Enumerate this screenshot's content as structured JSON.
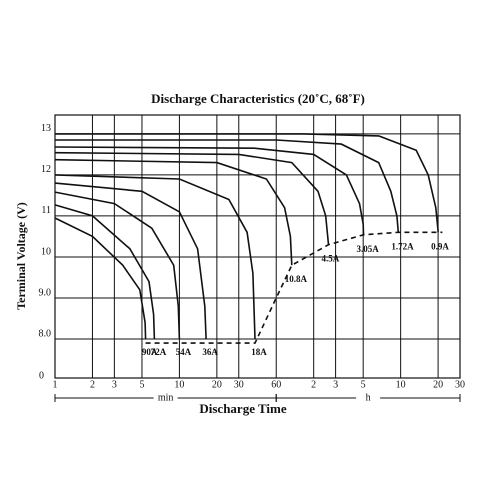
{
  "chart_data": {
    "type": "line",
    "title": "Discharge Characteristics (20˚C, 68˚F)",
    "x_label": "Discharge Time",
    "y_label": "Terminal Voltage (V)",
    "x_unit_labels": [
      "min",
      "h"
    ],
    "y_origin_label": "0",
    "log_x": true,
    "grid": true,
    "color": "#111111",
    "xlim": [
      1,
      1800
    ],
    "ylim": [
      7.05,
      13.46
    ],
    "xticks": [
      1,
      2,
      3,
      5,
      10,
      20,
      30,
      60,
      {
        "value": 120,
        "label": "2"
      },
      {
        "value": 180,
        "label": "3"
      },
      {
        "value": 300,
        "label": "5"
      },
      {
        "value": 600,
        "label": "10"
      },
      {
        "value": 1200,
        "label": "20"
      },
      {
        "value": 1800,
        "label": "30"
      }
    ],
    "yticks": [
      13,
      12,
      11,
      10,
      {
        "value": 9,
        "label": "9.0"
      },
      {
        "value": 8,
        "label": "8.0"
      }
    ],
    "series": [
      {
        "name": "0.9A",
        "x": [
          1,
          100,
          400,
          800,
          1000,
          1150,
          1202
        ],
        "values": [
          13.0,
          13.0,
          12.95,
          12.6,
          12.0,
          11.2,
          10.6
        ]
      },
      {
        "name": "1.72A",
        "x": [
          1,
          60,
          200,
          400,
          500,
          560,
          575
        ],
        "values": [
          12.85,
          12.85,
          12.75,
          12.3,
          11.6,
          11.0,
          10.6
        ]
      },
      {
        "name": "3.05A",
        "x": [
          1,
          40,
          120,
          220,
          280,
          300,
          302
        ],
        "values": [
          12.68,
          12.65,
          12.5,
          12.0,
          11.3,
          10.8,
          10.54
        ]
      },
      {
        "name": "4.5A",
        "x": [
          1,
          30,
          80,
          130,
          150,
          158
        ],
        "values": [
          12.54,
          12.5,
          12.3,
          11.6,
          11.0,
          10.3
        ]
      },
      {
        "name": "10.8A",
        "x": [
          1,
          20,
          50,
          70,
          78,
          80
        ],
        "values": [
          12.37,
          12.3,
          11.9,
          11.2,
          10.5,
          9.8
        ]
      },
      {
        "name": "18A",
        "x": [
          1,
          10,
          25,
          35,
          39,
          40.5
        ],
        "values": [
          12.0,
          11.9,
          11.4,
          10.6,
          9.6,
          8.0
        ]
      },
      {
        "name": "36A",
        "x": [
          1,
          5,
          10,
          14,
          16,
          16.4
        ],
        "values": [
          11.8,
          11.6,
          11.1,
          10.2,
          8.8,
          8.0
        ]
      },
      {
        "name": "54A",
        "x": [
          1,
          3,
          6,
          9,
          9.8,
          10
        ],
        "values": [
          11.58,
          11.3,
          10.7,
          9.8,
          8.8,
          8.0
        ]
      },
      {
        "name": "72A",
        "x": [
          1,
          2,
          4,
          5.7,
          6.2,
          6.3
        ],
        "values": [
          11.27,
          11.0,
          10.2,
          9.4,
          8.6,
          8.0
        ]
      },
      {
        "name": "90A",
        "x": [
          1,
          2,
          3.5,
          4.8,
          5.3,
          5.35
        ],
        "values": [
          10.95,
          10.5,
          9.8,
          9.2,
          8.4,
          8.0
        ]
      }
    ],
    "cutoff": {
      "x": [
        5.35,
        40.5,
        60,
        80,
        158,
        302,
        575,
        1202,
        1300
      ],
      "values": [
        7.9,
        7.9,
        9.0,
        9.8,
        10.3,
        10.54,
        10.6,
        10.6,
        10.6
      ]
    }
  }
}
